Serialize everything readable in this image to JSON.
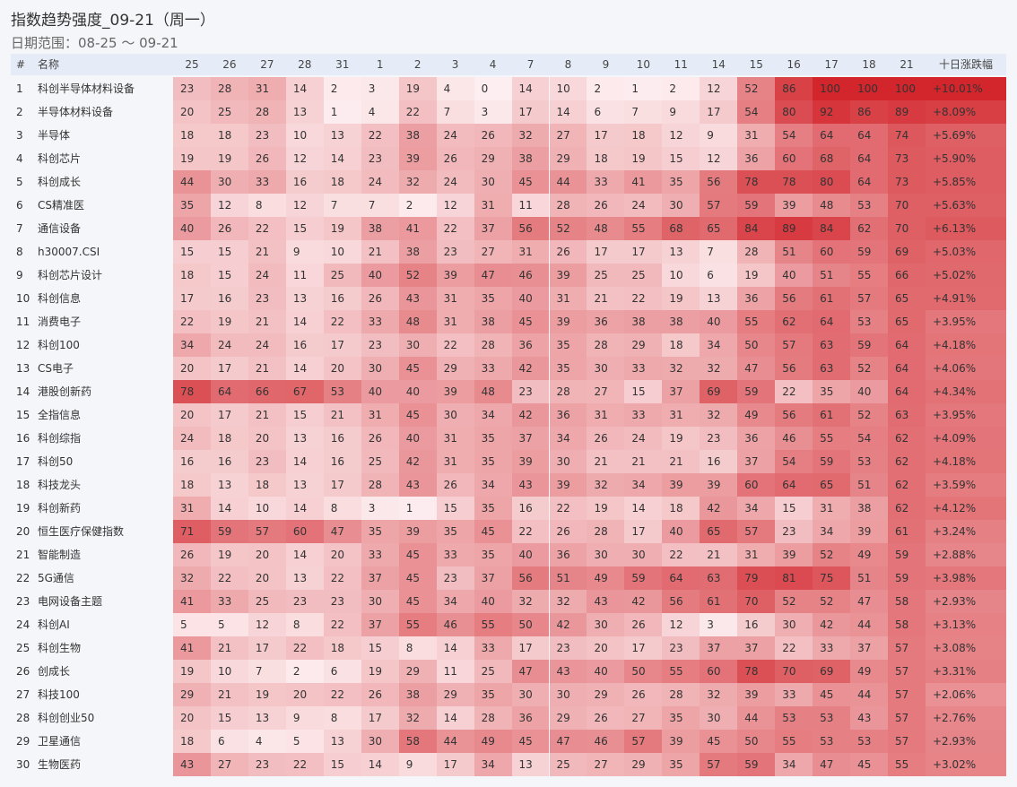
{
  "header": {
    "title": "指数趋势强度_09-21（周一）",
    "subtitle": "日期范围：08-25 ～ 09-21"
  },
  "table": {
    "columns": [
      "#",
      "名称",
      "25",
      "26",
      "27",
      "28",
      "31",
      "1",
      "2",
      "3",
      "4",
      "7",
      "8",
      "9",
      "10",
      "11",
      "14",
      "15",
      "16",
      "17",
      "18",
      "21",
      "十日涨跌幅"
    ],
    "rows": [
      [
        1,
        "科创半导体材料设备",
        23,
        28,
        31,
        14,
        2,
        3,
        19,
        4,
        0,
        14,
        10,
        2,
        1,
        2,
        12,
        52,
        86,
        100,
        100,
        100,
        "+10.01%"
      ],
      [
        2,
        "半导体材料设备",
        20,
        25,
        28,
        13,
        1,
        4,
        22,
        7,
        3,
        17,
        14,
        6,
        7,
        9,
        17,
        54,
        80,
        92,
        86,
        89,
        "+8.09%"
      ],
      [
        3,
        "半导体",
        18,
        18,
        23,
        10,
        13,
        22,
        38,
        24,
        26,
        32,
        27,
        17,
        18,
        12,
        9,
        31,
        54,
        64,
        64,
        74,
        "+5.69%"
      ],
      [
        4,
        "科创芯片",
        19,
        19,
        26,
        12,
        14,
        23,
        39,
        26,
        29,
        38,
        29,
        18,
        19,
        15,
        12,
        36,
        60,
        68,
        64,
        73,
        "+5.90%"
      ],
      [
        5,
        "科创成长",
        44,
        30,
        33,
        16,
        18,
        24,
        32,
        24,
        30,
        45,
        44,
        33,
        41,
        35,
        56,
        78,
        78,
        80,
        64,
        73,
        "+5.85%"
      ],
      [
        6,
        "CS精准医",
        35,
        12,
        8,
        12,
        7,
        7,
        2,
        12,
        31,
        11,
        28,
        26,
        24,
        30,
        57,
        59,
        39,
        48,
        53,
        70,
        "+5.63%"
      ],
      [
        7,
        "通信设备",
        40,
        26,
        22,
        15,
        19,
        38,
        41,
        22,
        37,
        56,
        52,
        48,
        55,
        68,
        65,
        84,
        89,
        84,
        62,
        70,
        "+6.13%"
      ],
      [
        8,
        "h30007.CSI",
        15,
        15,
        21,
        9,
        10,
        21,
        38,
        23,
        27,
        31,
        26,
        17,
        17,
        13,
        7,
        28,
        51,
        60,
        59,
        69,
        "+5.03%"
      ],
      [
        9,
        "科创芯片设计",
        18,
        15,
        24,
        11,
        25,
        40,
        52,
        39,
        47,
        46,
        39,
        25,
        25,
        10,
        6,
        19,
        40,
        51,
        55,
        66,
        "+5.02%"
      ],
      [
        10,
        "科创信息",
        17,
        16,
        23,
        13,
        16,
        26,
        43,
        31,
        35,
        40,
        31,
        21,
        22,
        19,
        13,
        36,
        56,
        61,
        57,
        65,
        "+4.91%"
      ],
      [
        11,
        "消费电子",
        22,
        19,
        21,
        14,
        22,
        33,
        48,
        31,
        38,
        45,
        39,
        36,
        38,
        38,
        40,
        55,
        62,
        64,
        53,
        65,
        "+3.95%"
      ],
      [
        12,
        "科创100",
        34,
        24,
        24,
        16,
        17,
        23,
        30,
        22,
        28,
        36,
        35,
        28,
        29,
        18,
        34,
        50,
        57,
        63,
        59,
        64,
        "+4.18%"
      ],
      [
        13,
        "CS电子",
        20,
        17,
        21,
        14,
        20,
        30,
        45,
        29,
        33,
        42,
        35,
        30,
        33,
        32,
        32,
        47,
        56,
        63,
        52,
        64,
        "+4.06%"
      ],
      [
        14,
        "港股创新药",
        78,
        64,
        66,
        67,
        53,
        40,
        40,
        39,
        48,
        23,
        28,
        27,
        15,
        37,
        69,
        59,
        22,
        35,
        40,
        64,
        "+4.34%"
      ],
      [
        15,
        "全指信息",
        20,
        17,
        21,
        15,
        21,
        31,
        45,
        30,
        34,
        42,
        36,
        31,
        33,
        31,
        32,
        49,
        56,
        61,
        52,
        63,
        "+3.95%"
      ],
      [
        16,
        "科创综指",
        24,
        18,
        20,
        13,
        16,
        26,
        40,
        31,
        35,
        37,
        34,
        26,
        24,
        19,
        23,
        36,
        46,
        55,
        54,
        62,
        "+4.09%"
      ],
      [
        17,
        "科创50",
        16,
        16,
        23,
        14,
        16,
        25,
        42,
        31,
        35,
        39,
        30,
        21,
        21,
        21,
        16,
        37,
        54,
        59,
        53,
        62,
        "+4.18%"
      ],
      [
        18,
        "科技龙头",
        18,
        13,
        18,
        13,
        17,
        28,
        43,
        26,
        34,
        43,
        39,
        32,
        34,
        39,
        39,
        60,
        64,
        65,
        51,
        62,
        "+3.59%"
      ],
      [
        19,
        "科创新药",
        31,
        14,
        10,
        14,
        8,
        3,
        1,
        15,
        35,
        16,
        22,
        19,
        14,
        18,
        42,
        34,
        15,
        31,
        38,
        62,
        "+4.12%"
      ],
      [
        20,
        "恒生医疗保健指数",
        71,
        59,
        57,
        60,
        47,
        35,
        39,
        35,
        45,
        22,
        26,
        28,
        17,
        40,
        65,
        57,
        23,
        34,
        39,
        61,
        "+3.24%"
      ],
      [
        21,
        "智能制造",
        26,
        19,
        20,
        14,
        20,
        33,
        45,
        33,
        35,
        40,
        36,
        30,
        30,
        22,
        21,
        31,
        39,
        52,
        49,
        59,
        "+2.88%"
      ],
      [
        22,
        "5G通信",
        32,
        22,
        20,
        13,
        22,
        37,
        45,
        23,
        37,
        56,
        51,
        49,
        59,
        64,
        63,
        79,
        81,
        75,
        51,
        59,
        "+3.98%"
      ],
      [
        23,
        "电网设备主题",
        41,
        33,
        25,
        23,
        23,
        30,
        45,
        34,
        40,
        32,
        32,
        43,
        42,
        56,
        61,
        70,
        52,
        52,
        47,
        58,
        "+2.93%"
      ],
      [
        24,
        "科创AI",
        5,
        5,
        12,
        8,
        22,
        37,
        55,
        46,
        55,
        50,
        42,
        30,
        26,
        12,
        3,
        16,
        30,
        42,
        44,
        58,
        "+3.13%"
      ],
      [
        25,
        "科创生物",
        41,
        21,
        17,
        22,
        18,
        15,
        8,
        14,
        33,
        17,
        23,
        20,
        17,
        23,
        37,
        37,
        22,
        33,
        37,
        57,
        "+3.08%"
      ],
      [
        26,
        "创成长",
        19,
        10,
        7,
        2,
        6,
        19,
        29,
        11,
        25,
        47,
        43,
        40,
        50,
        55,
        60,
        78,
        70,
        69,
        49,
        57,
        "+3.31%"
      ],
      [
        27,
        "科技100",
        29,
        21,
        19,
        20,
        22,
        26,
        38,
        29,
        35,
        30,
        30,
        29,
        26,
        28,
        32,
        39,
        33,
        45,
        44,
        57,
        "+2.06%"
      ],
      [
        28,
        "科创创业50",
        20,
        15,
        13,
        9,
        8,
        17,
        32,
        14,
        28,
        36,
        29,
        26,
        27,
        35,
        30,
        44,
        53,
        53,
        43,
        57,
        "+2.76%"
      ],
      [
        29,
        "卫星通信",
        18,
        6,
        4,
        5,
        13,
        30,
        58,
        44,
        49,
        45,
        47,
        46,
        57,
        39,
        45,
        50,
        55,
        53,
        53,
        57,
        "+2.93%"
      ],
      [
        30,
        "生物医药",
        43,
        27,
        23,
        22,
        15,
        14,
        9,
        17,
        34,
        13,
        25,
        27,
        29,
        35,
        57,
        59,
        34,
        47,
        45,
        55,
        "+3.02%"
      ]
    ]
  }
}
